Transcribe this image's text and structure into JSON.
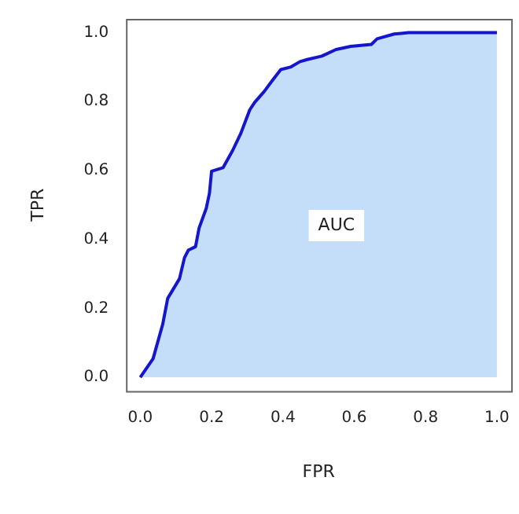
{
  "chart_data": {
    "type": "area",
    "xlabel": "FPR",
    "ylabel": "TPR",
    "x": [
      0,
      0.036,
      0.063,
      0.077,
      0.11,
      0.124,
      0.135,
      0.155,
      0.165,
      0.185,
      0.194,
      0.2,
      0.232,
      0.259,
      0.282,
      0.307,
      0.321,
      0.348,
      0.371,
      0.394,
      0.421,
      0.448,
      0.468,
      0.509,
      0.549,
      0.59,
      0.648,
      0.664,
      0.712,
      0.752,
      1
    ],
    "series": [
      {
        "color": "#1515cc",
        "values": [
          0,
          0.054,
          0.154,
          0.229,
          0.286,
          0.347,
          0.369,
          0.379,
          0.433,
          0.49,
          0.534,
          0.598,
          0.608,
          0.658,
          0.708,
          0.776,
          0.798,
          0.83,
          0.862,
          0.893,
          0.9,
          0.916,
          0.922,
          0.932,
          0.951,
          0.96,
          0.966,
          0.982,
          0.996,
          1,
          1
        ]
      }
    ],
    "xlim": [
      -0.04,
      1.04
    ],
    "ylim": [
      -0.04,
      1.04
    ],
    "xticks": [
      {
        "value": 0,
        "label": "0.0"
      },
      {
        "value": 0.2,
        "label": "0.2"
      },
      {
        "value": 0.4,
        "label": "0.4"
      },
      {
        "value": 0.6,
        "label": "0.6"
      },
      {
        "value": 0.8,
        "label": "0.8"
      },
      {
        "value": 1,
        "label": "1.0"
      }
    ],
    "yticks": [
      {
        "value": 0,
        "label": "0.0"
      },
      {
        "value": 0.2,
        "label": "0.2"
      },
      {
        "value": 0.4,
        "label": "0.4"
      },
      {
        "value": 0.6,
        "label": "0.6"
      },
      {
        "value": 0.8,
        "label": "0.8"
      },
      {
        "value": 1,
        "label": "1.0"
      }
    ],
    "annotations": [
      {
        "text": "AUC",
        "x": 0.55,
        "y": 0.44
      }
    ],
    "grid": false,
    "legend": false
  }
}
